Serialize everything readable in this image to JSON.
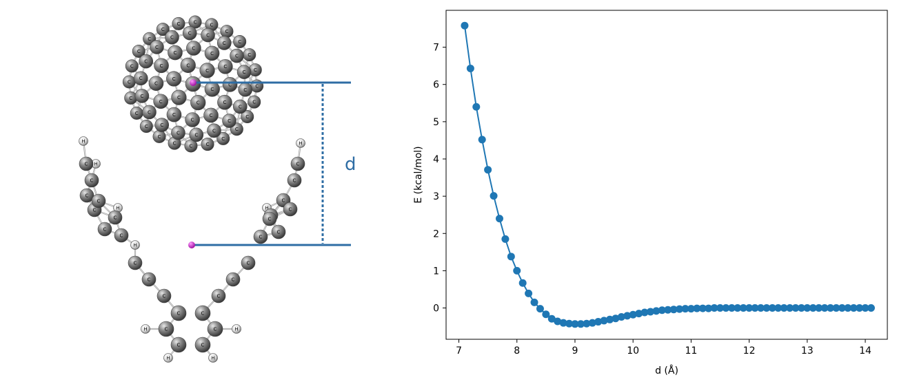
{
  "figure": {
    "molecule_panel": {
      "distance_label": "d",
      "atom_labels": {
        "carbon": "C",
        "hydrogen": "H"
      },
      "colors": {
        "carbon": "#707070",
        "hydrogen": "#e6e6e6",
        "dummy": "#c020c0",
        "guide": "#2e6da4"
      }
    }
  },
  "chart_data": {
    "type": "scatter",
    "xlabel": "d (Å)",
    "ylabel": "E (kcal/mol)",
    "xlim": [
      6.78,
      14.38
    ],
    "ylim": [
      -0.84,
      7.99
    ],
    "xticks": [
      7,
      8,
      9,
      10,
      11,
      12,
      13,
      14
    ],
    "yticks": [
      0,
      1,
      2,
      3,
      4,
      5,
      6,
      7
    ],
    "grid": false,
    "legend": "none",
    "color": "#1f77b4",
    "series": [
      {
        "marker": "circle",
        "line": true,
        "x": [
          7.1,
          7.2,
          7.3,
          7.4,
          7.5,
          7.6,
          7.7,
          7.8,
          7.9,
          8.0,
          8.1,
          8.2,
          8.3,
          8.4,
          8.5,
          8.6,
          8.7,
          8.8,
          8.9,
          9.0,
          9.1,
          9.2,
          9.3,
          9.4,
          9.5,
          9.6,
          9.7,
          9.8,
          9.9,
          10.0,
          10.1,
          10.2,
          10.3,
          10.4,
          10.5,
          10.6,
          10.7,
          10.8,
          10.9,
          11.0,
          11.1,
          11.2,
          11.3,
          11.4,
          11.5,
          11.6,
          11.7,
          11.8,
          11.9,
          12.0,
          12.1,
          12.2,
          12.3,
          12.4,
          12.5,
          12.6,
          12.7,
          12.8,
          12.9,
          13.0,
          13.1,
          13.2,
          13.3,
          13.4,
          13.5,
          13.6,
          13.7,
          13.8,
          13.9,
          14.0,
          14.1
        ],
        "y": [
          7.58,
          6.43,
          5.4,
          4.52,
          3.71,
          3.01,
          2.4,
          1.85,
          1.38,
          1.0,
          0.67,
          0.39,
          0.15,
          -0.02,
          -0.17,
          -0.29,
          -0.36,
          -0.4,
          -0.42,
          -0.43,
          -0.43,
          -0.42,
          -0.4,
          -0.37,
          -0.34,
          -0.31,
          -0.28,
          -0.24,
          -0.21,
          -0.18,
          -0.15,
          -0.12,
          -0.1,
          -0.08,
          -0.06,
          -0.05,
          -0.04,
          -0.03,
          -0.02,
          -0.02,
          -0.01,
          -0.01,
          -0.01,
          0.0,
          0.0,
          0.0,
          0.0,
          0.0,
          0.0,
          0.0,
          0.0,
          0.0,
          0.0,
          0.0,
          0.0,
          0.0,
          0.0,
          0.0,
          0.0,
          0.0,
          0.0,
          0.0,
          0.0,
          0.0,
          0.0,
          0.0,
          0.0,
          0.0,
          0.0,
          0.0,
          0.0
        ]
      }
    ]
  }
}
